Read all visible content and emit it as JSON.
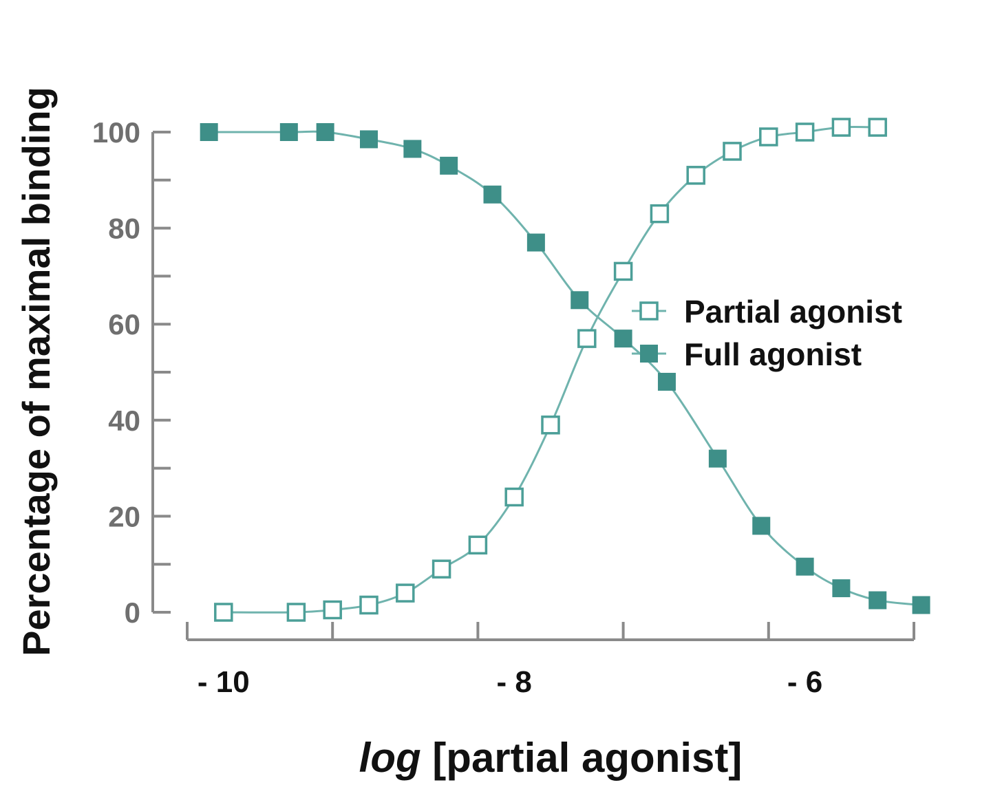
{
  "chart_data": {
    "type": "line",
    "xlabel_italic": "log",
    "xlabel_rest": " [partial agonist]",
    "ylabel": "Percentage of maximal binding",
    "xlim": [
      -10.25,
      -5.25
    ],
    "ylim": [
      0,
      100
    ],
    "y_ticks": [
      0,
      20,
      40,
      60,
      80,
      100
    ],
    "x_ticks": [
      -10,
      -8,
      -6
    ],
    "x_tick_labels": [
      "- 10",
      "- 8",
      "- 6"
    ],
    "legend_position": "center-right",
    "series": [
      {
        "name": "Partial agonist",
        "marker": "open-square",
        "color": "#4c9f98",
        "x": [
          -10.0,
          -9.5,
          -9.25,
          -9.0,
          -8.75,
          -8.5,
          -8.25,
          -8.0,
          -7.75,
          -7.5,
          -7.25,
          -7.0,
          -6.75,
          -6.5,
          -6.25,
          -6.0,
          -5.75,
          -5.5
        ],
        "y": [
          0,
          0,
          0.5,
          1.5,
          4,
          9,
          14,
          24,
          39,
          57,
          71,
          83,
          91,
          96,
          99,
          100,
          101,
          101
        ]
      },
      {
        "name": "Full agonist",
        "marker": "filled-square",
        "color": "#3e8f88",
        "x": [
          -10.1,
          -9.55,
          -9.3,
          -9.0,
          -8.7,
          -8.45,
          -8.15,
          -7.85,
          -7.55,
          -7.25,
          -6.95,
          -6.6,
          -6.3,
          -6.0,
          -5.75,
          -5.5,
          -5.2
        ],
        "y": [
          100,
          100,
          100,
          98.5,
          96.5,
          93,
          87,
          77,
          65,
          57,
          48,
          32,
          18,
          9.5,
          5,
          2.5,
          1.5
        ]
      }
    ]
  }
}
